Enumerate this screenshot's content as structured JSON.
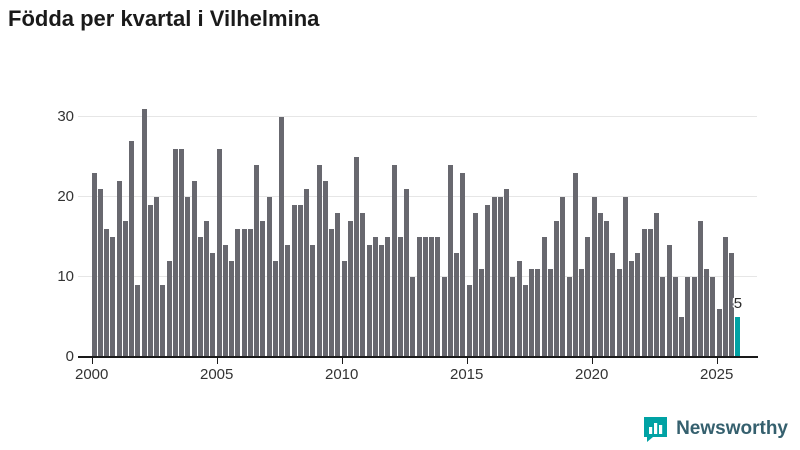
{
  "title": "Födda per kvartal i Vilhelmina",
  "chart_data": {
    "type": "bar",
    "title": "Födda per kvartal i Vilhelmina",
    "xlabel": "",
    "ylabel": "",
    "x_start": "2000-Q1",
    "x_end": "2025-Q4",
    "x_tick_labels": [
      "2000",
      "2005",
      "2010",
      "2015",
      "2020",
      "2025"
    ],
    "y_tick_labels": [
      "0",
      "10",
      "20",
      "30"
    ],
    "y_ticks": [
      0,
      10,
      20,
      30
    ],
    "ylim": [
      0,
      32
    ],
    "grid": true,
    "legend": false,
    "bar_color": "#68686f",
    "highlight_color": "#00a2a4",
    "series": [
      {
        "name": "Födda per kvartal",
        "values": [
          23,
          21,
          16,
          15,
          22,
          17,
          27,
          9,
          31,
          19,
          20,
          9,
          12,
          26,
          26,
          20,
          22,
          15,
          17,
          13,
          26,
          14,
          12,
          16,
          16,
          16,
          24,
          17,
          20,
          12,
          30,
          14,
          19,
          19,
          21,
          14,
          24,
          22,
          16,
          18,
          12,
          17,
          25,
          18,
          14,
          15,
          14,
          15,
          24,
          15,
          21,
          10,
          15,
          15,
          15,
          15,
          10,
          24,
          13,
          23,
          9,
          18,
          11,
          19,
          20,
          20,
          21,
          10,
          12,
          9,
          11,
          11,
          15,
          11,
          17,
          20,
          10,
          23,
          11,
          15,
          20,
          18,
          17,
          13,
          11,
          20,
          12,
          13,
          16,
          16,
          18,
          10,
          14,
          10,
          5,
          10,
          10,
          17,
          11,
          10,
          6,
          15,
          13,
          5
        ]
      }
    ],
    "annotation": {
      "text": "5",
      "bar_index": 103
    },
    "highlight_index": 103
  },
  "logo": {
    "text": "Newsworthy",
    "icon": "bar-chart-bubble-icon",
    "icon_color": "#00a2a4"
  }
}
